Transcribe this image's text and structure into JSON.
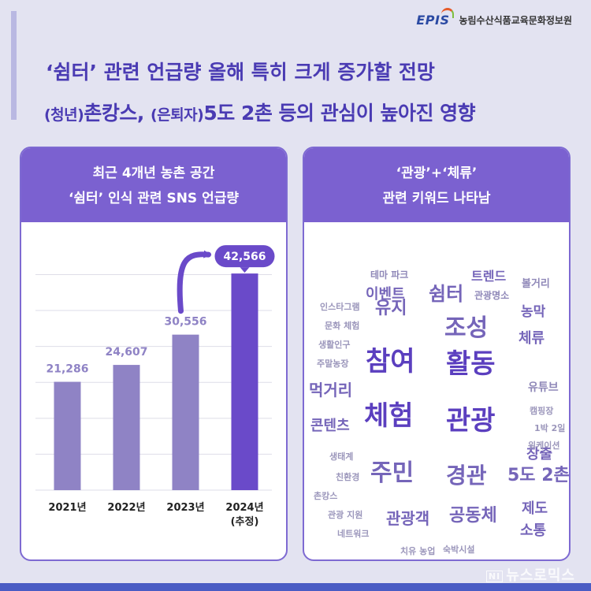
{
  "brand": {
    "logo_text": "EPIS",
    "org_name": "농림수산식품교육문화정보원"
  },
  "header": {
    "title": "‘쉼터’ 관련 언급량 올해 특히 크게 증가할 전망",
    "subtitle_p1": "(청년)",
    "subtitle_p2": "촌캉스, ",
    "subtitle_p3": "(은퇴자)",
    "subtitle_p4": "5도 2촌 등의 관심이 높아진 영향"
  },
  "left_panel": {
    "title_line1": "최근 4개년 농촌 공간",
    "title_line2": "‘쉼터’ 인식 관련 SNS 언급량"
  },
  "chart_data": {
    "type": "bar",
    "title": "최근 4개년 농촌 공간 ‘쉼터’ 인식 관련 SNS 언급량",
    "categories": [
      "2021년",
      "2022년",
      "2023년",
      "2024년"
    ],
    "category_sublabels": [
      "",
      "",
      "",
      "(추정)"
    ],
    "values": [
      21286,
      24607,
      30556,
      42566
    ],
    "value_labels": [
      "21,286",
      "24,607",
      "30,556",
      "42,566"
    ],
    "ylim": [
      0,
      48000
    ],
    "grid": true,
    "colors": [
      "#8f83c5",
      "#8f83c5",
      "#8f83c5",
      "#6a4ac9"
    ],
    "highlight_index": 3,
    "highlight_color": "#6a4ac9",
    "label_color": "#8f83c5"
  },
  "right_panel": {
    "title_line1": "‘관광’+‘체류’",
    "title_line2": "관련 키워드 나타남",
    "word_cloud": [
      {
        "text": "참여",
        "color": "#5b3fbf"
      },
      {
        "text": "활동",
        "color": "#5b3fbf"
      },
      {
        "text": "체험",
        "color": "#5b3fbf"
      },
      {
        "text": "관광",
        "color": "#5b3fbf"
      },
      {
        "text": "조성",
        "color": "#7565b9"
      },
      {
        "text": "주민",
        "color": "#7565b9"
      },
      {
        "text": "경관",
        "color": "#7565b9"
      },
      {
        "text": "쉼터",
        "color": "#7565b9"
      },
      {
        "text": "유지",
        "color": "#7565b9"
      },
      {
        "text": "이벤트",
        "color": "#7565b9"
      },
      {
        "text": "공동체",
        "color": "#7565b9"
      },
      {
        "text": "관광객",
        "color": "#7565b9"
      },
      {
        "text": "5도 2촌",
        "color": "#7565b9"
      },
      {
        "text": "창출",
        "color": "#7565b9"
      },
      {
        "text": "농막",
        "color": "#7565b9"
      },
      {
        "text": "체류",
        "color": "#7565b9"
      },
      {
        "text": "먹거리",
        "color": "#7565b9"
      },
      {
        "text": "콘텐츠",
        "color": "#7565b9"
      },
      {
        "text": "제도",
        "color": "#7565b9"
      },
      {
        "text": "소통",
        "color": "#7565b9"
      },
      {
        "text": "트렌드",
        "color": "#7565b9"
      },
      {
        "text": "볼거리",
        "color": "#8f88b8"
      },
      {
        "text": "유튜브",
        "color": "#8f88b8"
      },
      {
        "text": "테마 파크",
        "color": "#8f88b8"
      },
      {
        "text": "관광명소",
        "color": "#8f88b8"
      },
      {
        "text": "인스타그램",
        "color": "#9b96bb"
      },
      {
        "text": "문화 체험",
        "color": "#9b96bb"
      },
      {
        "text": "생활인구",
        "color": "#9b96bb"
      },
      {
        "text": "주말농장",
        "color": "#9b96bb"
      },
      {
        "text": "캠핑장",
        "color": "#9b96bb"
      },
      {
        "text": "1박 2일",
        "color": "#9b96bb"
      },
      {
        "text": "워케이션",
        "color": "#9b96bb"
      },
      {
        "text": "생태계",
        "color": "#9b96bb"
      },
      {
        "text": "친환경",
        "color": "#9b96bb"
      },
      {
        "text": "촌캉스",
        "color": "#9b96bb"
      },
      {
        "text": "관광 지원",
        "color": "#9b96bb"
      },
      {
        "text": "네트워크",
        "color": "#9b96bb"
      },
      {
        "text": "치유 농업",
        "color": "#9b96bb"
      },
      {
        "text": "숙박시설",
        "color": "#9b96bb"
      }
    ]
  },
  "watermark": {
    "box": "NI",
    "text": "뉴스로믹스"
  }
}
